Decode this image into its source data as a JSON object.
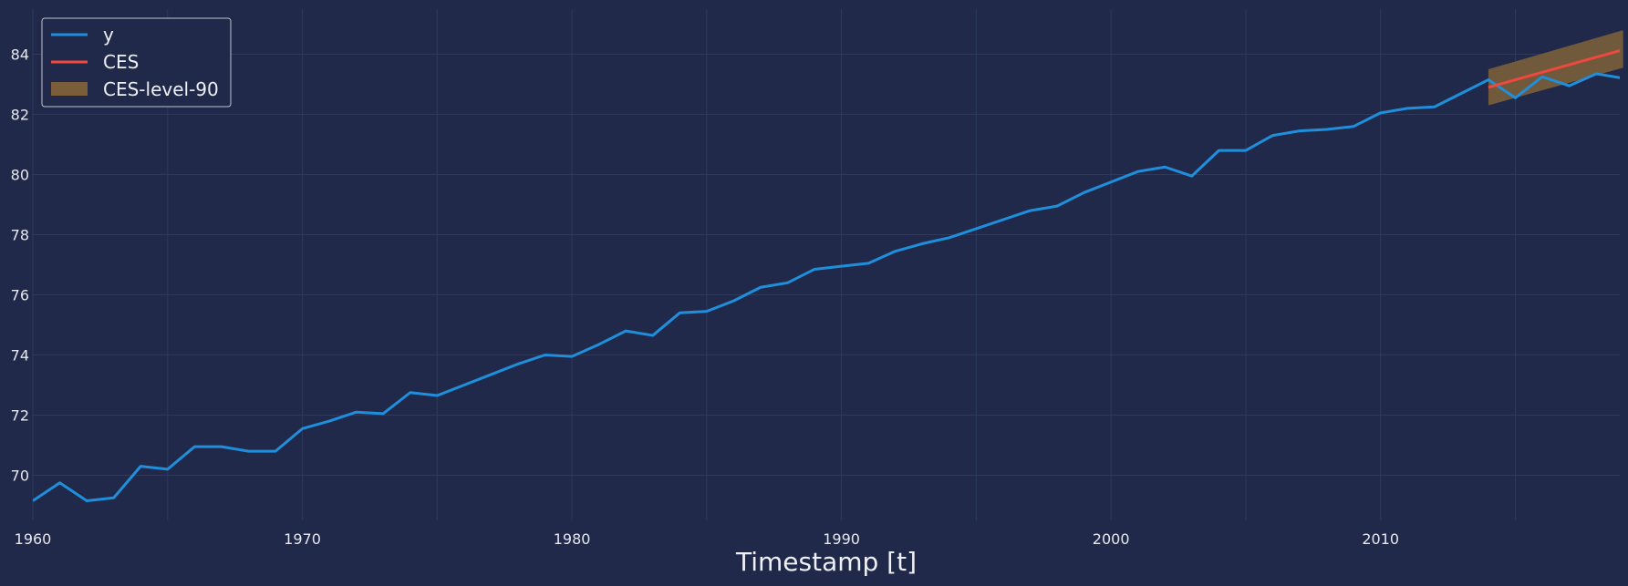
{
  "chart_data": {
    "type": "line",
    "title": "",
    "xlabel": "Timestamp [t]",
    "ylabel": "",
    "xlim": [
      1960,
      2018
    ],
    "ylim": [
      68.5,
      85.5
    ],
    "x_ticks": [
      1960,
      1970,
      1980,
      1990,
      2000,
      2010
    ],
    "y_ticks": [
      70,
      72,
      74,
      76,
      78,
      80,
      82,
      84
    ],
    "grid": true,
    "legend_position": "top-left",
    "legend": [
      "y",
      "CES",
      "CES-level-90"
    ],
    "series": [
      {
        "name": "y",
        "color": "#1f8fdc",
        "x": [
          1960,
          1961,
          1962,
          1963,
          1964,
          1965,
          1966,
          1967,
          1968,
          1969,
          1970,
          1971,
          1972,
          1973,
          1974,
          1975,
          1976,
          1977,
          1978,
          1979,
          1980,
          1981,
          1982,
          1983,
          1984,
          1985,
          1986,
          1987,
          1988,
          1989,
          1990,
          1991,
          1992,
          1993,
          1994,
          1995,
          1996,
          1997,
          1998,
          1999,
          2000,
          2001,
          2002,
          2003,
          2004,
          2005,
          2006,
          2007,
          2008,
          2009,
          2010,
          2011,
          2012,
          2013,
          2014,
          2015,
          2016,
          2017,
          2018,
          2019
        ],
        "values": [
          69.15,
          69.75,
          69.15,
          69.25,
          70.3,
          70.2,
          70.95,
          70.95,
          70.8,
          70.8,
          71.55,
          71.8,
          72.1,
          72.05,
          72.75,
          72.65,
          73.0,
          73.35,
          73.7,
          74.0,
          73.95,
          74.35,
          74.8,
          74.65,
          75.4,
          75.45,
          75.8,
          76.25,
          76.4,
          76.85,
          76.95,
          77.05,
          77.45,
          77.7,
          77.9,
          78.2,
          78.5,
          78.8,
          78.95,
          79.4,
          79.75,
          80.1,
          80.25,
          79.95,
          80.8,
          80.8,
          81.3,
          81.45,
          81.5,
          81.6,
          82.05,
          82.2,
          82.25,
          82.7,
          83.15,
          82.55,
          83.25,
          82.95,
          83.35,
          83.2
        ]
      },
      {
        "name": "CES",
        "color": "#f0483e",
        "x": [
          2014,
          2019
        ],
        "values": [
          82.9,
          84.15
        ]
      }
    ],
    "band": {
      "name": "CES-level-90",
      "color": "#7a5e3a",
      "x": [
        2014,
        2019
      ],
      "lower": [
        82.3,
        83.55
      ],
      "upper": [
        83.5,
        84.8
      ]
    }
  }
}
